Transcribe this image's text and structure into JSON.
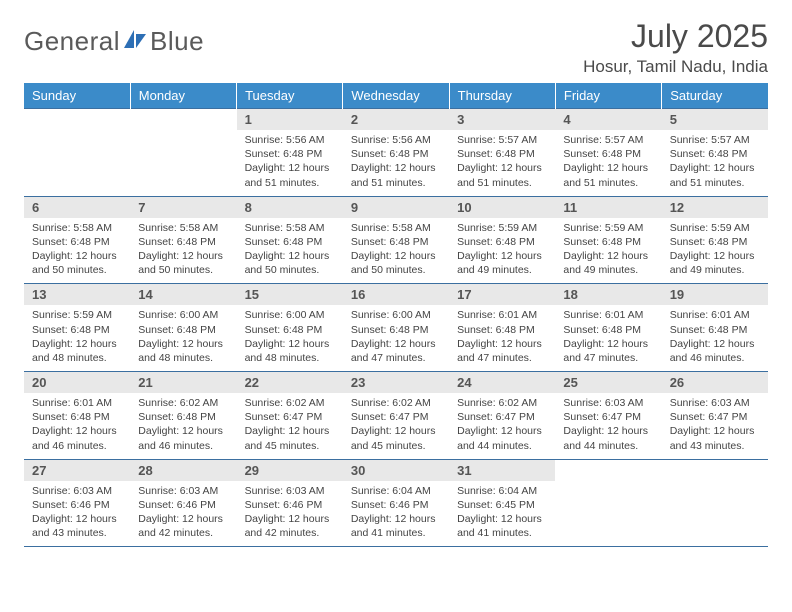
{
  "logo": {
    "word1": "General",
    "word2": "Blue"
  },
  "title": "July 2025",
  "location": "Hosur, Tamil Nadu, India",
  "colors": {
    "header_bg": "#3b8bc9",
    "header_text": "#ffffff",
    "border": "#3b6fa0",
    "daynum_bg": "#e8e8e8",
    "body_text": "#444444",
    "logo_accent": "#2d6fb5"
  },
  "day_headers": [
    "Sunday",
    "Monday",
    "Tuesday",
    "Wednesday",
    "Thursday",
    "Friday",
    "Saturday"
  ],
  "weeks": [
    [
      {
        "n": "",
        "lines": [
          "",
          "",
          "",
          ""
        ]
      },
      {
        "n": "",
        "lines": [
          "",
          "",
          "",
          ""
        ]
      },
      {
        "n": "1",
        "lines": [
          "Sunrise: 5:56 AM",
          "Sunset: 6:48 PM",
          "Daylight: 12 hours",
          "and 51 minutes."
        ]
      },
      {
        "n": "2",
        "lines": [
          "Sunrise: 5:56 AM",
          "Sunset: 6:48 PM",
          "Daylight: 12 hours",
          "and 51 minutes."
        ]
      },
      {
        "n": "3",
        "lines": [
          "Sunrise: 5:57 AM",
          "Sunset: 6:48 PM",
          "Daylight: 12 hours",
          "and 51 minutes."
        ]
      },
      {
        "n": "4",
        "lines": [
          "Sunrise: 5:57 AM",
          "Sunset: 6:48 PM",
          "Daylight: 12 hours",
          "and 51 minutes."
        ]
      },
      {
        "n": "5",
        "lines": [
          "Sunrise: 5:57 AM",
          "Sunset: 6:48 PM",
          "Daylight: 12 hours",
          "and 51 minutes."
        ]
      }
    ],
    [
      {
        "n": "6",
        "lines": [
          "Sunrise: 5:58 AM",
          "Sunset: 6:48 PM",
          "Daylight: 12 hours",
          "and 50 minutes."
        ]
      },
      {
        "n": "7",
        "lines": [
          "Sunrise: 5:58 AM",
          "Sunset: 6:48 PM",
          "Daylight: 12 hours",
          "and 50 minutes."
        ]
      },
      {
        "n": "8",
        "lines": [
          "Sunrise: 5:58 AM",
          "Sunset: 6:48 PM",
          "Daylight: 12 hours",
          "and 50 minutes."
        ]
      },
      {
        "n": "9",
        "lines": [
          "Sunrise: 5:58 AM",
          "Sunset: 6:48 PM",
          "Daylight: 12 hours",
          "and 50 minutes."
        ]
      },
      {
        "n": "10",
        "lines": [
          "Sunrise: 5:59 AM",
          "Sunset: 6:48 PM",
          "Daylight: 12 hours",
          "and 49 minutes."
        ]
      },
      {
        "n": "11",
        "lines": [
          "Sunrise: 5:59 AM",
          "Sunset: 6:48 PM",
          "Daylight: 12 hours",
          "and 49 minutes."
        ]
      },
      {
        "n": "12",
        "lines": [
          "Sunrise: 5:59 AM",
          "Sunset: 6:48 PM",
          "Daylight: 12 hours",
          "and 49 minutes."
        ]
      }
    ],
    [
      {
        "n": "13",
        "lines": [
          "Sunrise: 5:59 AM",
          "Sunset: 6:48 PM",
          "Daylight: 12 hours",
          "and 48 minutes."
        ]
      },
      {
        "n": "14",
        "lines": [
          "Sunrise: 6:00 AM",
          "Sunset: 6:48 PM",
          "Daylight: 12 hours",
          "and 48 minutes."
        ]
      },
      {
        "n": "15",
        "lines": [
          "Sunrise: 6:00 AM",
          "Sunset: 6:48 PM",
          "Daylight: 12 hours",
          "and 48 minutes."
        ]
      },
      {
        "n": "16",
        "lines": [
          "Sunrise: 6:00 AM",
          "Sunset: 6:48 PM",
          "Daylight: 12 hours",
          "and 47 minutes."
        ]
      },
      {
        "n": "17",
        "lines": [
          "Sunrise: 6:01 AM",
          "Sunset: 6:48 PM",
          "Daylight: 12 hours",
          "and 47 minutes."
        ]
      },
      {
        "n": "18",
        "lines": [
          "Sunrise: 6:01 AM",
          "Sunset: 6:48 PM",
          "Daylight: 12 hours",
          "and 47 minutes."
        ]
      },
      {
        "n": "19",
        "lines": [
          "Sunrise: 6:01 AM",
          "Sunset: 6:48 PM",
          "Daylight: 12 hours",
          "and 46 minutes."
        ]
      }
    ],
    [
      {
        "n": "20",
        "lines": [
          "Sunrise: 6:01 AM",
          "Sunset: 6:48 PM",
          "Daylight: 12 hours",
          "and 46 minutes."
        ]
      },
      {
        "n": "21",
        "lines": [
          "Sunrise: 6:02 AM",
          "Sunset: 6:48 PM",
          "Daylight: 12 hours",
          "and 46 minutes."
        ]
      },
      {
        "n": "22",
        "lines": [
          "Sunrise: 6:02 AM",
          "Sunset: 6:47 PM",
          "Daylight: 12 hours",
          "and 45 minutes."
        ]
      },
      {
        "n": "23",
        "lines": [
          "Sunrise: 6:02 AM",
          "Sunset: 6:47 PM",
          "Daylight: 12 hours",
          "and 45 minutes."
        ]
      },
      {
        "n": "24",
        "lines": [
          "Sunrise: 6:02 AM",
          "Sunset: 6:47 PM",
          "Daylight: 12 hours",
          "and 44 minutes."
        ]
      },
      {
        "n": "25",
        "lines": [
          "Sunrise: 6:03 AM",
          "Sunset: 6:47 PM",
          "Daylight: 12 hours",
          "and 44 minutes."
        ]
      },
      {
        "n": "26",
        "lines": [
          "Sunrise: 6:03 AM",
          "Sunset: 6:47 PM",
          "Daylight: 12 hours",
          "and 43 minutes."
        ]
      }
    ],
    [
      {
        "n": "27",
        "lines": [
          "Sunrise: 6:03 AM",
          "Sunset: 6:46 PM",
          "Daylight: 12 hours",
          "and 43 minutes."
        ]
      },
      {
        "n": "28",
        "lines": [
          "Sunrise: 6:03 AM",
          "Sunset: 6:46 PM",
          "Daylight: 12 hours",
          "and 42 minutes."
        ]
      },
      {
        "n": "29",
        "lines": [
          "Sunrise: 6:03 AM",
          "Sunset: 6:46 PM",
          "Daylight: 12 hours",
          "and 42 minutes."
        ]
      },
      {
        "n": "30",
        "lines": [
          "Sunrise: 6:04 AM",
          "Sunset: 6:46 PM",
          "Daylight: 12 hours",
          "and 41 minutes."
        ]
      },
      {
        "n": "31",
        "lines": [
          "Sunrise: 6:04 AM",
          "Sunset: 6:45 PM",
          "Daylight: 12 hours",
          "and 41 minutes."
        ]
      },
      {
        "n": "",
        "lines": [
          "",
          "",
          "",
          ""
        ]
      },
      {
        "n": "",
        "lines": [
          "",
          "",
          "",
          ""
        ]
      }
    ]
  ]
}
